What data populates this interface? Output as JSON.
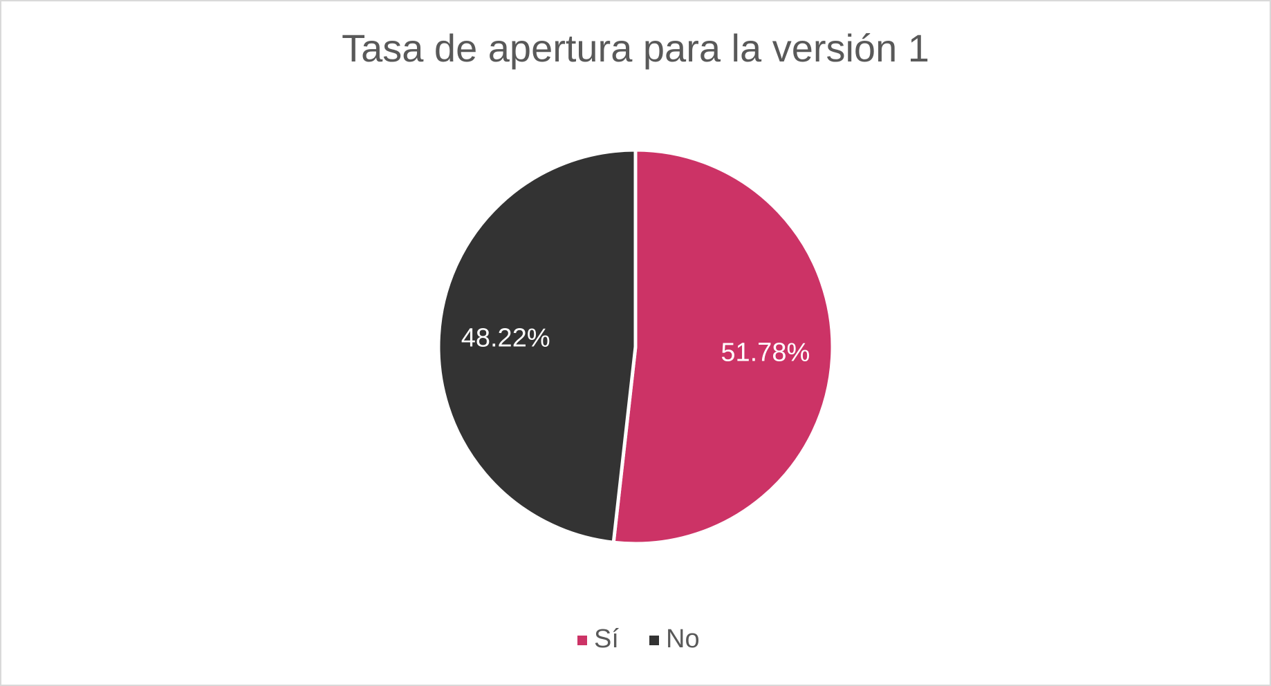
{
  "chart_data": {
    "type": "pie",
    "title": "Tasa de apertura para la versión 1",
    "categories": [
      "Sí",
      "No"
    ],
    "series": [
      {
        "values": [
          51.78,
          48.22
        ],
        "value_labels": [
          "51.78%",
          "48.22%"
        ],
        "colors": [
          "#cc3366",
          "#333333"
        ]
      }
    ],
    "legend": "bottom"
  }
}
